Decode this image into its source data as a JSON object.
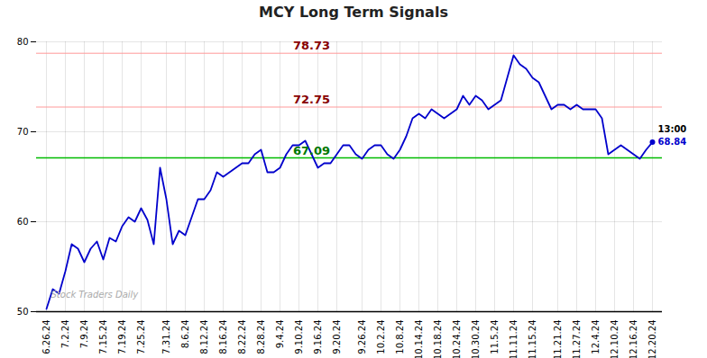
{
  "chart_data": {
    "type": "line",
    "title": "MCY Long Term Signals",
    "categories": [
      "6.26.24",
      null,
      null,
      "7.2.24",
      null,
      null,
      "7.9.24",
      null,
      null,
      "7.15.24",
      null,
      null,
      "7.19.24",
      null,
      null,
      "7.25.24",
      null,
      null,
      null,
      "7.31.24",
      null,
      null,
      "8.6.24",
      null,
      null,
      "8.12.24",
      null,
      null,
      "8.16.24",
      null,
      null,
      "8.22.24",
      null,
      null,
      "8.28.24",
      null,
      null,
      "9.4.24",
      null,
      null,
      "9.10.24",
      null,
      null,
      "9.16.24",
      null,
      null,
      "9.20.24",
      null,
      null,
      null,
      "9.26.24",
      null,
      null,
      "10.2.24",
      null,
      null,
      "10.8.24",
      null,
      null,
      "10.14.24",
      null,
      null,
      "10.18.24",
      null,
      null,
      "10.24.24",
      null,
      null,
      "10.30.24",
      null,
      null,
      "11.5.24",
      null,
      null,
      "11.11.24",
      null,
      null,
      "11.15.24",
      null,
      null,
      null,
      "11.21.24",
      null,
      null,
      "11.27.24",
      null,
      null,
      "12.4.24",
      null,
      null,
      "12.10.24",
      null,
      null,
      "12.16.24",
      null,
      null,
      "12.20.24"
    ],
    "values": [
      50.3,
      52.5,
      52.0,
      54.5,
      57.5,
      57.0,
      55.5,
      57.0,
      57.8,
      55.8,
      58.2,
      57.8,
      59.5,
      60.5,
      60.0,
      61.5,
      60.2,
      57.5,
      66.0,
      62.5,
      57.5,
      59.0,
      58.5,
      60.5,
      62.5,
      62.5,
      63.5,
      65.5,
      65.0,
      65.5,
      66.0,
      66.5,
      66.5,
      67.5,
      68.0,
      65.5,
      65.5,
      66.0,
      67.5,
      68.5,
      68.5,
      69.0,
      67.5,
      66.0,
      66.5,
      66.5,
      67.5,
      68.5,
      68.5,
      67.5,
      67.0,
      68.0,
      68.5,
      68.5,
      67.5,
      67.0,
      68.0,
      69.5,
      71.5,
      72.0,
      71.5,
      72.5,
      72.0,
      71.5,
      72.0,
      72.5,
      74.0,
      73.0,
      74.0,
      73.5,
      72.5,
      73.0,
      73.5,
      76.0,
      78.5,
      77.5,
      77.0,
      76.0,
      75.5,
      74.0,
      72.5,
      73.0,
      73.0,
      72.5,
      73.0,
      72.5,
      72.5,
      72.5,
      71.5,
      67.5,
      68.0,
      68.5,
      68.0,
      67.5,
      67.0,
      68.0,
      68.84
    ],
    "color": "#0000cc",
    "ylim": [
      50,
      80
    ],
    "yticks": [
      50,
      60,
      70,
      80
    ],
    "grid": true,
    "hlines": [
      {
        "y": 72.75,
        "label": "72.75",
        "color": "#ff9999",
        "label_color": "#880000"
      },
      {
        "y": 78.73,
        "label": "78.73",
        "color": "#ff9999",
        "label_color": "#880000"
      },
      {
        "y": 67.09,
        "label": "67.09",
        "color": "#00bb00",
        "label_color": "#007700"
      }
    ],
    "annotations": [
      {
        "text": "13:00",
        "color": "#000000"
      },
      {
        "text": "68.84",
        "color": "#0000cc"
      }
    ],
    "watermark": "Stock Traders Daily"
  }
}
